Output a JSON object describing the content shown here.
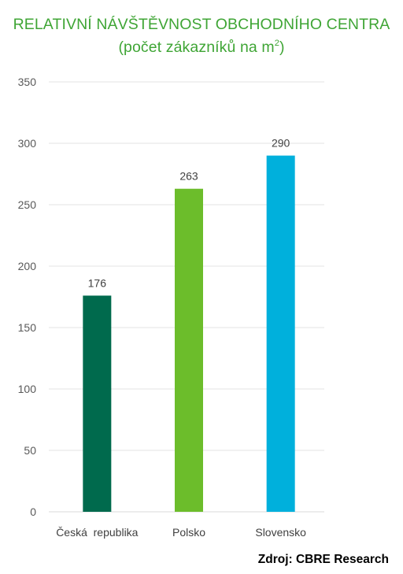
{
  "title_line1": "RELATIVNÍ NÁVŠTĚVNOST OBCHODNÍHO CENTRA",
  "title_line2": "(počet zákazníků na m",
  "title_line2_sup": "2",
  "title_line2_end": ")",
  "source": "Zdroj: CBRE Research",
  "chart_data": {
    "type": "bar",
    "title": "RELATIVNÍ NÁVŠTĚVNOST OBCHODNÍHO CENTRA (počet zákazníků na m2)",
    "categories": [
      "Česká  republika",
      "Polsko",
      "Slovensko"
    ],
    "values": [
      176,
      263,
      290
    ],
    "data_labels": [
      "176",
      "263",
      "290"
    ],
    "colors": [
      "#006a4d",
      "#6cbd2b",
      "#00b0dc"
    ],
    "ylim": [
      0,
      350
    ],
    "yticks": [
      0,
      50,
      100,
      150,
      200,
      250,
      300,
      350
    ],
    "grid": true,
    "legend": "none",
    "xlabel": "",
    "ylabel": ""
  }
}
